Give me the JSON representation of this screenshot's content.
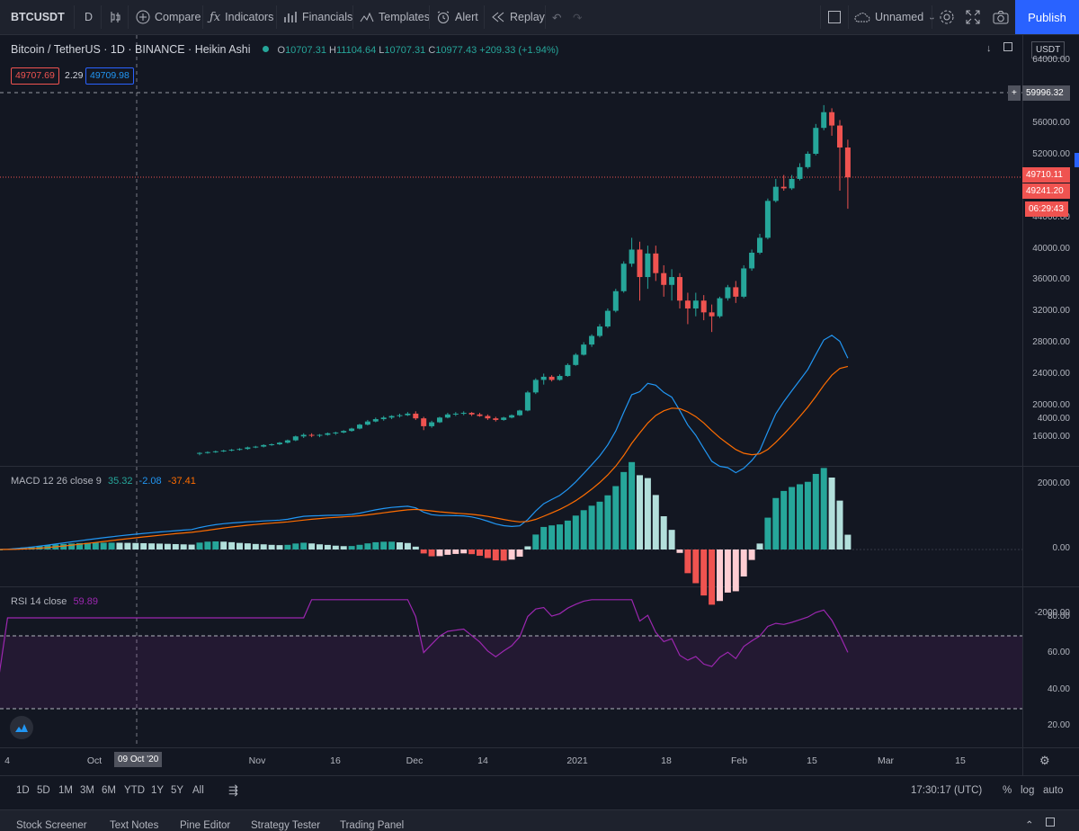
{
  "toolbar": {
    "symbol": "BTCUSDT",
    "interval": "D",
    "compare": "Compare",
    "indicators": "Indicators",
    "financials": "Financials",
    "templates": "Templates",
    "alert": "Alert",
    "replay": "Replay",
    "layout_name": "Unnamed",
    "publish": "Publish"
  },
  "legend": {
    "title": "Bitcoin / TetherUS · 1D · BINANCE · Heikin Ashi",
    "o_label": "O",
    "o": "10707.31",
    "h_label": "H",
    "h": "11104.64",
    "l_label": "L",
    "l": "10707.31",
    "c_label": "C",
    "c": "10977.43",
    "change": "+209.33 (+1.94%)",
    "bid": "49707.69",
    "spread": "2.29",
    "ask": "49709.98",
    "currency": "USDT"
  },
  "price_axis": [
    "64000.00",
    "56000.00",
    "52000.00",
    "44000.00",
    "40000.00",
    "36000.00",
    "32000.00",
    "28000.00",
    "24000.00",
    "20000.00",
    "16000.00"
  ],
  "price_tags": {
    "crosshair": "59996.32",
    "last": "49710.11",
    "close": "49241.20",
    "countdown": "06:29:43"
  },
  "macd": {
    "label": "MACD 12 26 close 9",
    "v1": "35.32",
    "v2": "-2.08",
    "v3": "-37.41",
    "axis": [
      "4000.00",
      "2000.00",
      "0.00",
      "-2000.00"
    ]
  },
  "rsi": {
    "label": "RSI 14 close",
    "value": "59.89",
    "axis": [
      "80.00",
      "60.00",
      "40.00",
      "20.00"
    ]
  },
  "time_axis": [
    "4",
    "Oct",
    "Nov",
    "16",
    "Dec",
    "14",
    "2021",
    "18",
    "Feb",
    "15",
    "Mar",
    "15"
  ],
  "time_crosshair": "09 Oct '20",
  "ranges": [
    "1D",
    "5D",
    "1M",
    "3M",
    "6M",
    "YTD",
    "1Y",
    "5Y",
    "All"
  ],
  "clock": "17:30:17 (UTC)",
  "scale_opts": [
    "%",
    "log",
    "auto"
  ],
  "tabs": [
    "Stock Screener",
    "Text Notes",
    "Pine Editor",
    "Strategy Tester",
    "Trading Panel"
  ],
  "colors": {
    "up": "#26a69a",
    "down": "#ef5350",
    "macd": "#2196f3",
    "signal": "#ff6d00",
    "rsi": "#9c27b0",
    "accent": "#2962ff"
  },
  "chart_data": {
    "type": "candlestick",
    "ylim": [
      14000,
      65000
    ],
    "candles": [
      [
        14000,
        14200,
        13800,
        14100
      ],
      [
        14100,
        14300,
        14000,
        14200
      ],
      [
        14200,
        14400,
        14100,
        14300
      ],
      [
        14300,
        14500,
        14200,
        14400
      ],
      [
        14400,
        14600,
        14300,
        14500
      ],
      [
        14500,
        14700,
        14400,
        14600
      ],
      [
        14600,
        14900,
        14500,
        14800
      ],
      [
        14800,
        15000,
        14700,
        14900
      ],
      [
        14900,
        15200,
        14800,
        15100
      ],
      [
        15100,
        15300,
        15000,
        15200
      ],
      [
        15200,
        15500,
        15100,
        15400
      ],
      [
        15400,
        15800,
        15300,
        15700
      ],
      [
        15700,
        16300,
        15600,
        16200
      ],
      [
        16200,
        16600,
        16000,
        16400
      ],
      [
        16400,
        16600,
        16100,
        16300
      ],
      [
        16300,
        16500,
        16100,
        16400
      ],
      [
        16400,
        16700,
        16300,
        16600
      ],
      [
        16600,
        16800,
        16400,
        16700
      ],
      [
        16700,
        17000,
        16600,
        16900
      ],
      [
        16900,
        17300,
        16800,
        17200
      ],
      [
        17200,
        17800,
        17100,
        17700
      ],
      [
        17700,
        18300,
        17600,
        18100
      ],
      [
        18100,
        18600,
        18000,
        18400
      ],
      [
        18400,
        18800,
        18200,
        18600
      ],
      [
        18600,
        18900,
        18400,
        18800
      ],
      [
        18800,
        19100,
        18600,
        18900
      ],
      [
        18900,
        19300,
        18800,
        19100
      ],
      [
        19100,
        19400,
        18300,
        18500
      ],
      [
        18500,
        18700,
        17000,
        17500
      ],
      [
        17500,
        18200,
        17300,
        18000
      ],
      [
        18000,
        18700,
        17900,
        18600
      ],
      [
        18600,
        19200,
        18500,
        19000
      ],
      [
        19000,
        19300,
        18800,
        19100
      ],
      [
        19100,
        19400,
        18900,
        19200
      ],
      [
        19200,
        19300,
        18800,
        19000
      ],
      [
        19000,
        19200,
        18700,
        18800
      ],
      [
        18800,
        19000,
        18300,
        18500
      ],
      [
        18500,
        18700,
        18100,
        18300
      ],
      [
        18300,
        18700,
        18200,
        18600
      ],
      [
        18600,
        19000,
        18500,
        18900
      ],
      [
        18900,
        19600,
        18800,
        19500
      ],
      [
        19500,
        22000,
        19400,
        21800
      ],
      [
        21800,
        23600,
        21600,
        23400
      ],
      [
        23400,
        24200,
        22800,
        23800
      ],
      [
        23800,
        24000,
        23200,
        23400
      ],
      [
        23400,
        24100,
        23300,
        23900
      ],
      [
        23900,
        25500,
        23800,
        25300
      ],
      [
        25300,
        26800,
        25200,
        26600
      ],
      [
        26600,
        28200,
        26500,
        27900
      ],
      [
        27900,
        29200,
        27600,
        29000
      ],
      [
        29000,
        30500,
        28800,
        30200
      ],
      [
        30200,
        32500,
        30000,
        32200
      ],
      [
        32200,
        35000,
        32000,
        34700
      ],
      [
        34700,
        38500,
        34500,
        38200
      ],
      [
        38200,
        41500,
        37800,
        40000
      ],
      [
        40000,
        41000,
        33500,
        36500
      ],
      [
        36500,
        40500,
        35000,
        39500
      ],
      [
        39500,
        40500,
        36000,
        37000
      ],
      [
        37000,
        38000,
        34000,
        35500
      ],
      [
        35500,
        37500,
        33500,
        36500
      ],
      [
        36500,
        37000,
        32500,
        33500
      ],
      [
        33500,
        34500,
        30500,
        32500
      ],
      [
        32500,
        34500,
        31500,
        33500
      ],
      [
        33500,
        34200,
        31000,
        32000
      ],
      [
        32000,
        33000,
        29500,
        31500
      ],
      [
        31500,
        34000,
        31300,
        33800
      ],
      [
        33800,
        35500,
        33500,
        35200
      ],
      [
        35200,
        36000,
        33200,
        34000
      ],
      [
        34000,
        38000,
        33800,
        37600
      ],
      [
        37600,
        40000,
        37300,
        39600
      ],
      [
        39600,
        42000,
        39400,
        41500
      ],
      [
        41500,
        46500,
        41300,
        46200
      ],
      [
        46200,
        49000,
        46000,
        48000
      ],
      [
        48000,
        49500,
        47500,
        47800
      ],
      [
        47800,
        49500,
        47600,
        49000
      ],
      [
        49000,
        51000,
        48800,
        50500
      ],
      [
        50500,
        52500,
        50300,
        52200
      ],
      [
        52200,
        56000,
        52000,
        55500
      ],
      [
        55500,
        58400,
        55200,
        57500
      ],
      [
        57500,
        58000,
        54500,
        55800
      ],
      [
        55800,
        56500,
        47500,
        53000
      ],
      [
        53000,
        54000,
        45200,
        49200
      ]
    ],
    "macd_axis": [
      -2000,
      4000
    ],
    "rsi_axis": [
      20,
      90
    ],
    "rsi_bands": [
      30,
      70
    ]
  }
}
